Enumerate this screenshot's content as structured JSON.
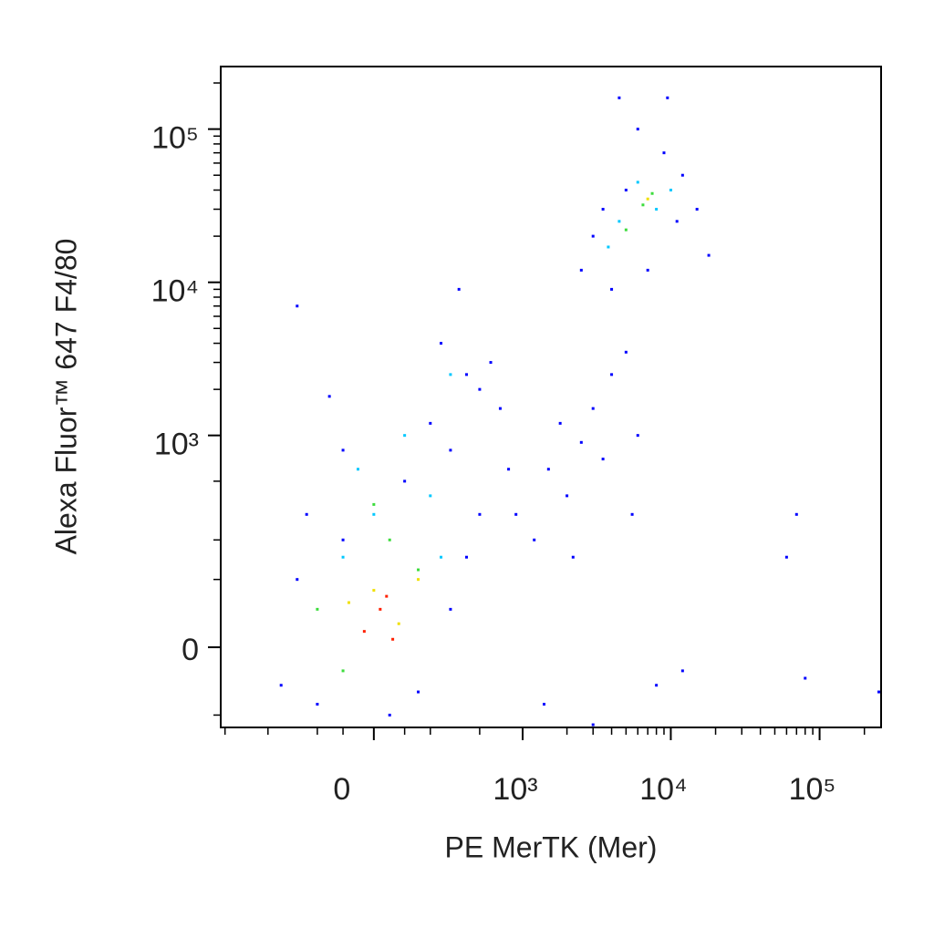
{
  "chart_data": {
    "type": "scatter",
    "xlabel": "PE MerTK (Mer)",
    "ylabel": "Alexa Fluor™ 647 F4/80",
    "xscale": "biexponential",
    "yscale": "biexponential",
    "xlim": [
      -1070,
      259000
    ],
    "ylim": [
      -126,
      256000
    ],
    "xticks": [
      0,
      {
        "value": 1000,
        "label": "10³"
      },
      {
        "value": 10000,
        "label": "10⁴"
      },
      {
        "value": 100000,
        "label": "10⁵"
      }
    ],
    "yticks": [
      0,
      {
        "value": 1000,
        "label": "10³"
      },
      {
        "value": 10000,
        "label": "10⁴"
      },
      {
        "value": 100000,
        "label": "10⁵"
      }
    ],
    "xminorticks": [
      -1000,
      -500,
      -200,
      -100,
      100,
      200,
      500,
      2000,
      3000,
      4000,
      5000,
      6000,
      7000,
      8000,
      9000,
      20000,
      30000,
      40000,
      50000,
      60000,
      70000,
      80000,
      90000,
      200000
    ],
    "yminorticks": [
      -100,
      100,
      200,
      500,
      2000,
      3000,
      4000,
      5000,
      6000,
      7000,
      8000,
      9000,
      20000,
      30000,
      40000,
      50000,
      60000,
      70000,
      80000,
      90000,
      200000
    ],
    "series": [
      {
        "color": "#0000ff",
        "x": [
          -400,
          -300,
          -200,
          -100,
          50,
          150,
          300,
          400,
          500,
          -250,
          100,
          300,
          200,
          500,
          600,
          400,
          700,
          800,
          -100,
          250,
          -300,
          350,
          -150,
          900,
          1200,
          1500,
          2000,
          2500,
          3000,
          1800,
          4000,
          5000,
          3500,
          2200,
          6000,
          8000,
          12000,
          60000,
          80000,
          250000,
          1400,
          3000,
          5500,
          70000,
          2500,
          3000,
          4000,
          5000,
          9000,
          12000,
          15000,
          6000,
          11000,
          3500,
          4500,
          9500,
          18000,
          7000
        ],
        "y": [
          -50,
          100,
          -80,
          200,
          -100,
          -60,
          50,
          150,
          300,
          300,
          500,
          800,
          1200,
          2000,
          3000,
          2500,
          1500,
          600,
          800,
          4000,
          7000,
          9000,
          1800,
          300,
          200,
          600,
          400,
          900,
          1500,
          1200,
          2500,
          3500,
          700,
          150,
          1000,
          -50,
          -30,
          150,
          -40,
          -60,
          -80,
          -120,
          300,
          300,
          12000,
          20000,
          9000,
          40000,
          70000,
          50000,
          30000,
          100000,
          25000,
          30000,
          160000,
          160000,
          15000,
          12000
        ]
      },
      {
        "color": "#00c8ff",
        "x": [
          0,
          -100,
          200,
          100,
          300,
          -50,
          4500,
          6000,
          8000,
          3800,
          10000,
          250
        ],
        "y": [
          300,
          150,
          400,
          1000,
          2500,
          600,
          25000,
          45000,
          30000,
          17000,
          40000,
          150
        ]
      },
      {
        "color": "#3cdc3c",
        "x": [
          -200,
          50,
          150,
          -100,
          6500,
          7500,
          5000,
          0
        ],
        "y": [
          50,
          200,
          120,
          -30,
          32000,
          38000,
          22000,
          350
        ]
      },
      {
        "color": "#f0e000",
        "x": [
          0,
          80,
          -80,
          7000,
          150
        ],
        "y": [
          80,
          30,
          60,
          35000,
          100
        ]
      },
      {
        "color": "#ff2000",
        "x": [
          20,
          60,
          -30,
          40
        ],
        "y": [
          50,
          10,
          20,
          70
        ]
      }
    ]
  }
}
